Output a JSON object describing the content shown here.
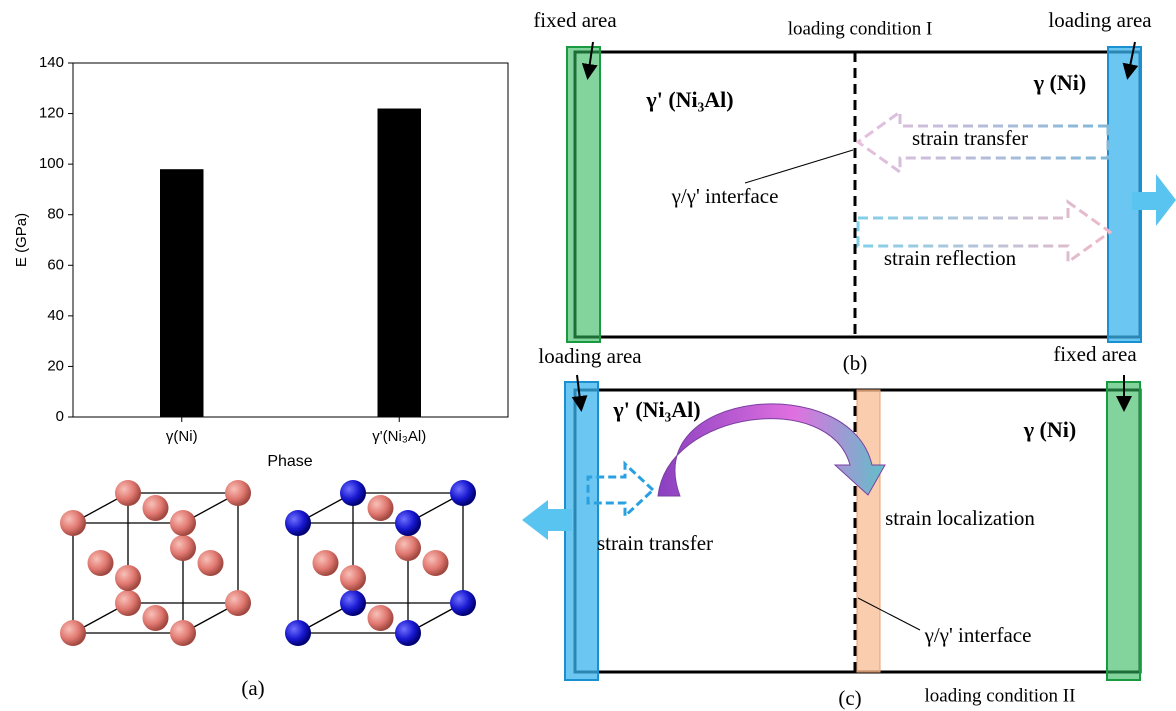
{
  "chart_data": {
    "type": "bar",
    "categories": [
      "γ(Ni)",
      "γ'(Ni₃Al)"
    ],
    "values": [
      98,
      122
    ],
    "color": "#000000",
    "ylim": [
      0,
      140
    ],
    "yticks": [
      0,
      20,
      40,
      60,
      80,
      100,
      120,
      140
    ],
    "x_label": "Phase",
    "y_label": "E (GPa)"
  },
  "figure": {
    "panel_a_label": "(a)",
    "panel_b": {
      "label": "(b)",
      "fixed_area": "fixed area",
      "loading_condition": "loading condition I",
      "loading_area": "loading area",
      "phase_left": "γ' (Ni₃Al)",
      "phase_right": "γ (Ni)",
      "strain_transfer": "strain transfer",
      "interface": "γ/γ' interface",
      "strain_reflection": "strain reflection"
    },
    "panel_c": {
      "label": "(c)",
      "loading_area": "loading area",
      "fixed_area": "fixed area",
      "phase_left": "γ' (Ni₃Al)",
      "phase_right": "γ (Ni)",
      "strain_localization": "strain localization",
      "strain_transfer": "strain transfer",
      "interface": "γ/γ' interface",
      "loading_condition": "loading condition II"
    }
  }
}
